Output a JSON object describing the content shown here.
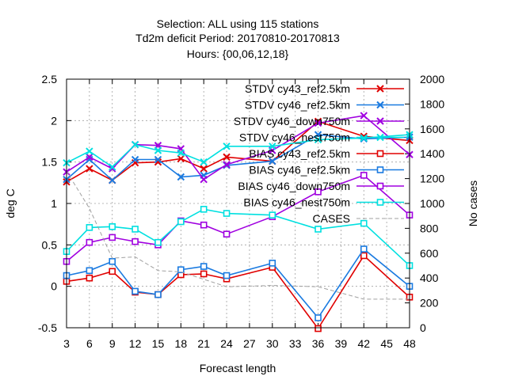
{
  "chart_data": {
    "type": "line",
    "title_lines": [
      "Selection: ALL using   115 stations",
      "Td2m deficit   Period: 20170810-20170813",
      "Hours: {00,06,12,18}"
    ],
    "xlabel": "Forecast length",
    "ylabel": "deg C",
    "y2label": "No cases",
    "x_ticks": [
      3,
      6,
      9,
      12,
      15,
      18,
      21,
      24,
      27,
      30,
      33,
      36,
      39,
      42,
      45,
      48
    ],
    "xlim": [
      3,
      48
    ],
    "ylim": [
      -0.5,
      2.5
    ],
    "y_ticks": [
      "-0.5",
      "0",
      "0.5",
      "1",
      "1.5",
      "2",
      "2.5"
    ],
    "y2lim": [
      0,
      2000
    ],
    "y2_ticks": [
      "0",
      "200",
      "400",
      "600",
      "800",
      "1000",
      "1200",
      "1400",
      "1600",
      "1800",
      "2000"
    ],
    "grid": true,
    "legend_position": "top-right",
    "x": [
      3,
      6,
      9,
      12,
      15,
      18,
      21,
      24,
      30,
      36,
      42,
      48
    ],
    "series": [
      {
        "name": "STDV cy43_ref2.5km",
        "color": "#e00000",
        "marker": "x",
        "axis": "left",
        "values": [
          1.26,
          1.42,
          1.28,
          1.49,
          1.5,
          1.54,
          1.42,
          1.56,
          1.51,
          1.99,
          1.81,
          1.76
        ]
      },
      {
        "name": "STDV cy46_ref2.5km",
        "color": "#1a7ae0",
        "marker": "x",
        "axis": "left",
        "values": [
          1.29,
          1.53,
          1.28,
          1.53,
          1.53,
          1.32,
          1.34,
          1.46,
          1.51,
          1.83,
          1.78,
          1.8
        ]
      },
      {
        "name": "STDV cy46_down750m",
        "color": "#a000e0",
        "marker": "x",
        "axis": "left",
        "values": [
          1.38,
          1.56,
          1.42,
          1.71,
          1.7,
          1.66,
          1.29,
          1.47,
          1.64,
          1.97,
          2.06,
          1.59
        ]
      },
      {
        "name": "STDV cy46_nest750m",
        "color": "#00e0e0",
        "marker": "x",
        "axis": "left",
        "values": [
          1.49,
          1.63,
          1.44,
          1.71,
          1.64,
          1.61,
          1.5,
          1.69,
          1.69,
          1.77,
          1.79,
          1.83
        ]
      },
      {
        "name": "BIAS cy43_ref2.5km",
        "color": "#e00000",
        "marker": "square",
        "axis": "left",
        "values": [
          0.06,
          0.1,
          0.18,
          -0.07,
          -0.1,
          0.14,
          0.15,
          0.09,
          0.23,
          -0.51,
          0.37,
          -0.13
        ]
      },
      {
        "name": "BIAS cy46_ref2.5km",
        "color": "#1a7ae0",
        "marker": "square",
        "axis": "left",
        "values": [
          0.13,
          0.19,
          0.3,
          -0.06,
          -0.1,
          0.2,
          0.24,
          0.13,
          0.28,
          -0.38,
          0.45,
          0.0
        ]
      },
      {
        "name": "BIAS cy46_down750m",
        "color": "#a000e0",
        "marker": "square",
        "axis": "left",
        "values": [
          0.3,
          0.53,
          0.59,
          0.54,
          0.5,
          0.79,
          0.74,
          0.63,
          0.84,
          1.14,
          1.34,
          0.86
        ]
      },
      {
        "name": "BIAS cy46_nest750m",
        "color": "#00e0e0",
        "marker": "square",
        "axis": "left",
        "values": [
          0.42,
          0.71,
          0.72,
          0.69,
          0.53,
          0.78,
          0.93,
          0.88,
          0.86,
          0.69,
          0.76,
          0.25
        ]
      },
      {
        "name": "CASES",
        "color": "#a0a0a0",
        "marker": "none",
        "dashed": true,
        "axis": "right",
        "values": [
          1260,
          960,
          560,
          570,
          460,
          450,
          390,
          330,
          340,
          330,
          230,
          230
        ]
      }
    ]
  }
}
